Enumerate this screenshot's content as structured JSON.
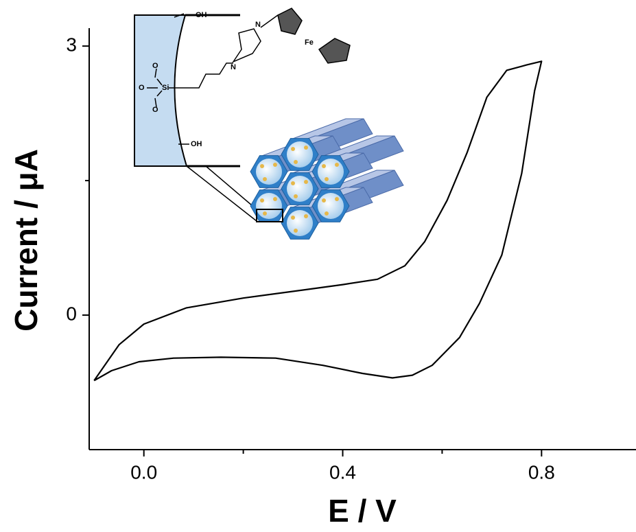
{
  "chart_data": {
    "type": "line",
    "x_label": "E / V",
    "y_label": "Current / μA",
    "xlim": [
      -0.11,
      0.99
    ],
    "ylim": [
      -1.5,
      3.2
    ],
    "xticks": [
      {
        "value": 0,
        "label": "0.0"
      },
      {
        "value": 0.4,
        "label": "0.4"
      },
      {
        "value": 0.8,
        "label": "0.8"
      }
    ],
    "xminorticks": [
      0.2,
      0.6
    ],
    "yticks": [
      0,
      3
    ],
    "yminorticks": [
      1.5
    ],
    "color": "#000000",
    "x": [
      -0.1,
      -0.05,
      0.0,
      0.085,
      0.2,
      0.32,
      0.4,
      0.47,
      0.525,
      0.565,
      0.61,
      0.65,
      0.69,
      0.73,
      0.77,
      0.8,
      0.786,
      0.76,
      0.72,
      0.675,
      0.635,
      0.58,
      0.54,
      0.5,
      0.44,
      0.36,
      0.265,
      0.155,
      0.06,
      -0.01,
      -0.065,
      -0.1
    ],
    "values": [
      -0.73,
      -0.33,
      -0.1,
      0.08,
      0.19,
      0.28,
      0.34,
      0.4,
      0.55,
      0.82,
      1.28,
      1.81,
      2.43,
      2.73,
      2.79,
      2.83,
      2.5,
      1.58,
      0.67,
      0.13,
      -0.25,
      -0.56,
      -0.67,
      -0.7,
      -0.65,
      -0.56,
      -0.48,
      -0.47,
      -0.48,
      -0.52,
      -0.62,
      -0.73
    ],
    "inset_labels": [
      "OH",
      "OH",
      "Si",
      "Fe",
      "N",
      "N",
      "O",
      "O",
      "O"
    ]
  }
}
